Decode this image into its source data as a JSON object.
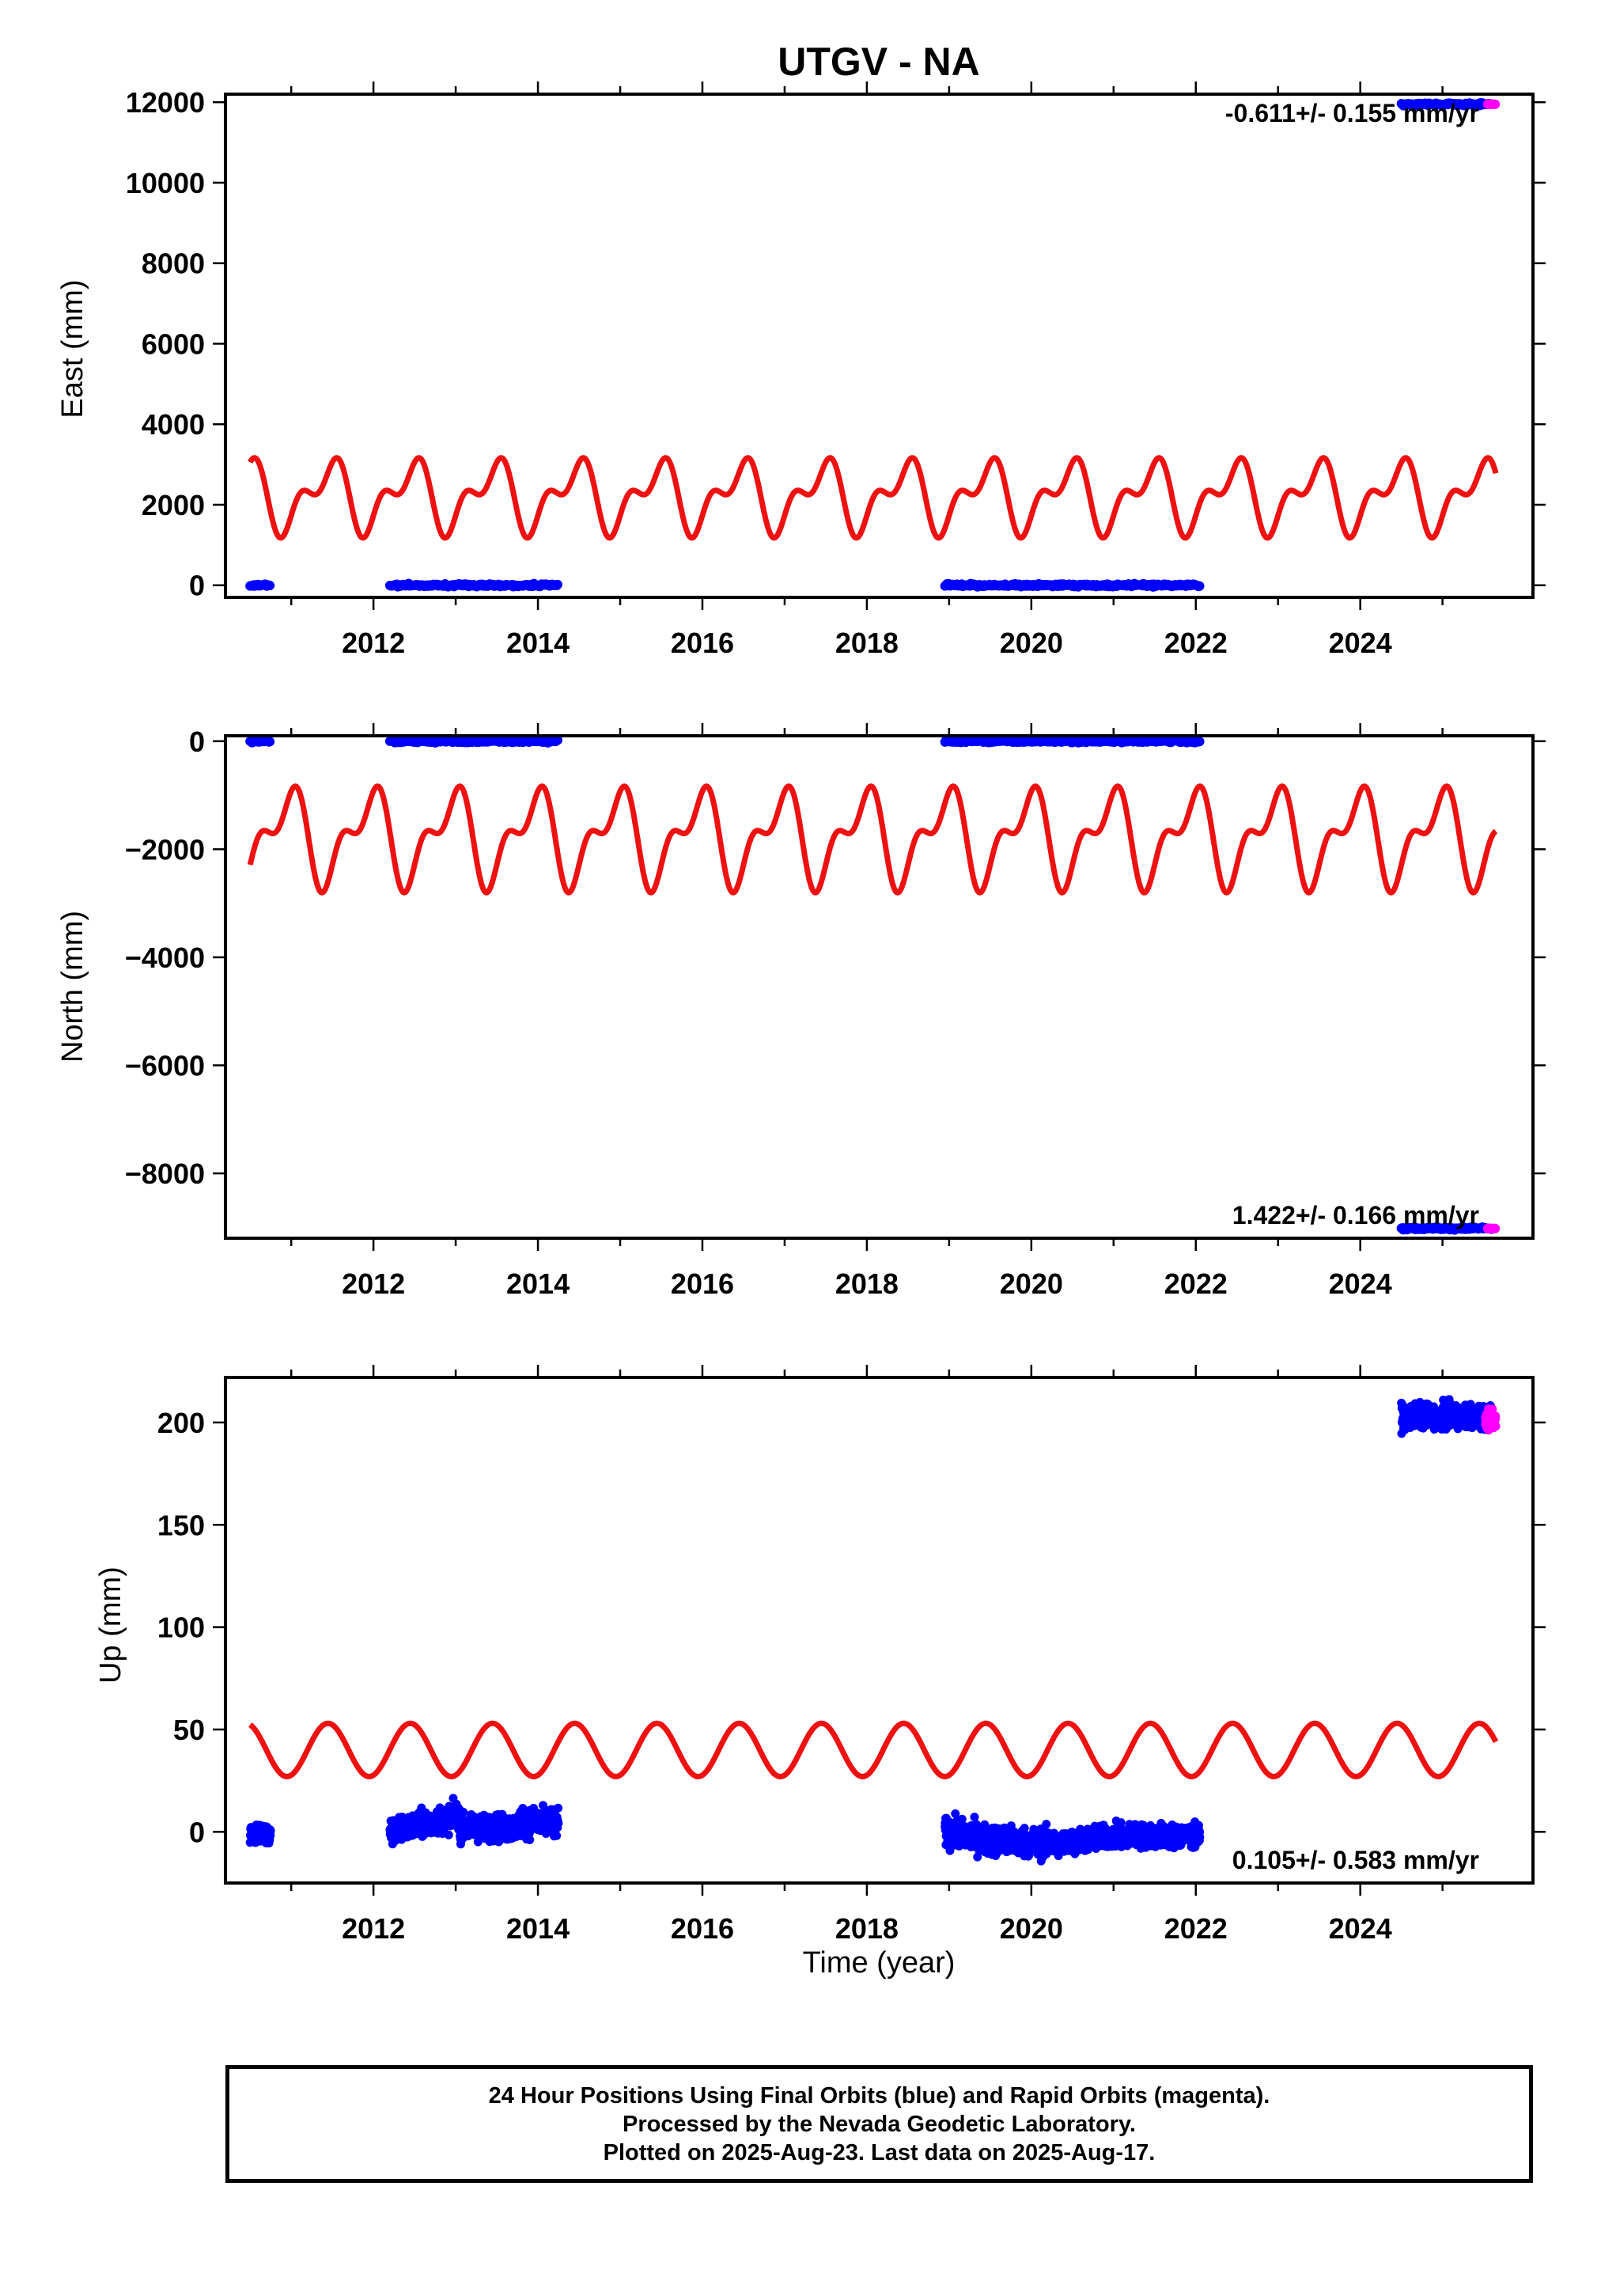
{
  "chart_data": {
    "title": "UTGV - NA",
    "xlabel": "Time (year)",
    "xlim": [
      2010.2,
      2026.1
    ],
    "xticks": [
      "2012",
      "2014",
      "2016",
      "2018",
      "2020",
      "2022",
      "2024"
    ],
    "colors": {
      "final": "#0000ff",
      "rapid": "#ff00ff",
      "fit": "#ee1111"
    },
    "panels": [
      {
        "type": "scatter",
        "ylabel": "East (mm)",
        "ylim": [
          -300,
          12200
        ],
        "yticks": [
          "0",
          "2000",
          "4000",
          "6000",
          "8000",
          "10000",
          "12000"
        ],
        "rate": "-0.611+/- 0.155 mm/yr",
        "final_segments": [
          {
            "x": [
              2010.5,
              2010.75
            ],
            "y": 0
          },
          {
            "x": [
              2012.2,
              2014.25
            ],
            "y": 0
          },
          {
            "x": [
              2018.95,
              2022.05
            ],
            "y": 0
          },
          {
            "x": [
              2024.5,
              2025.6
            ],
            "y": 11950
          }
        ],
        "rapid_segment": {
          "x": [
            2025.55,
            2025.65
          ],
          "y": 11950
        },
        "fit": {
          "mean": 2220,
          "amp1": 700,
          "amp2": 450,
          "start": 2010.5,
          "end": 2025.65
        }
      },
      {
        "type": "scatter",
        "ylabel": "North (mm)",
        "ylim": [
          -9200,
          100
        ],
        "yticks": [
          "0",
          "−2000",
          "−4000",
          "−6000",
          "−8000"
        ],
        "rate": "1.422+/- 0.166 mm/yr",
        "final_segments": [
          {
            "x": [
              2010.5,
              2010.75
            ],
            "y": 0
          },
          {
            "x": [
              2012.2,
              2014.25
            ],
            "y": 0
          },
          {
            "x": [
              2018.95,
              2022.05
            ],
            "y": 0
          },
          {
            "x": [
              2024.5,
              2025.6
            ],
            "y": -9020
          }
        ],
        "rapid_segment": {
          "x": [
            2025.55,
            2025.65
          ],
          "y": -9020
        },
        "fit": {
          "mean": -1770,
          "amp1": -720,
          "amp2": 420,
          "start": 2010.5,
          "end": 2025.65
        }
      },
      {
        "type": "scatter",
        "ylabel": "Up (mm)",
        "ylim": [
          -25,
          222
        ],
        "yticks": [
          "0",
          "50",
          "100",
          "150",
          "200"
        ],
        "rate": "0.105+/- 0.583 mm/yr",
        "final_clusters": [
          {
            "x": [
              2010.5,
              2010.75
            ],
            "trend": [
              0,
              -2
            ],
            "noise": 4
          },
          {
            "x": [
              2012.2,
              2013.05
            ],
            "trend": [
              0,
              8
            ],
            "noise": 4.5
          },
          {
            "x": [
              2013.05,
              2013.75
            ],
            "trend": [
              2,
              2
            ],
            "noise": 4.5
          },
          {
            "x": [
              2013.75,
              2014.25
            ],
            "trend": [
              5,
              4
            ],
            "noise": 5
          },
          {
            "x": [
              2018.95,
              2019.5
            ],
            "trend": [
              0,
              -4
            ],
            "noise": 5
          },
          {
            "x": [
              2019.5,
              2020.3
            ],
            "trend": [
              -4,
              -6
            ],
            "noise": 5
          },
          {
            "x": [
              2020.3,
              2021.0
            ],
            "trend": [
              -6,
              -2
            ],
            "noise": 4
          },
          {
            "x": [
              2021.0,
              2022.05
            ],
            "trend": [
              -2,
              -2
            ],
            "noise": 4
          },
          {
            "x": [
              2024.5,
              2025.6
            ],
            "trend": [
              203,
              203
            ],
            "noise": 4
          }
        ],
        "rapid_cluster": {
          "x": [
            2025.52,
            2025.65
          ],
          "y": 201
        },
        "fit": {
          "mean": 40,
          "amp1": 13,
          "amp2": 0,
          "start": 2010.5,
          "end": 2025.65
        }
      }
    ]
  },
  "caption": {
    "line1": "24 Hour Positions Using Final Orbits (blue) and Rapid Orbits (magenta).",
    "line2": "Processed by the Nevada Geodetic Laboratory.",
    "line3": "Plotted on 2025-Aug-23. Last data on 2025-Aug-17."
  }
}
